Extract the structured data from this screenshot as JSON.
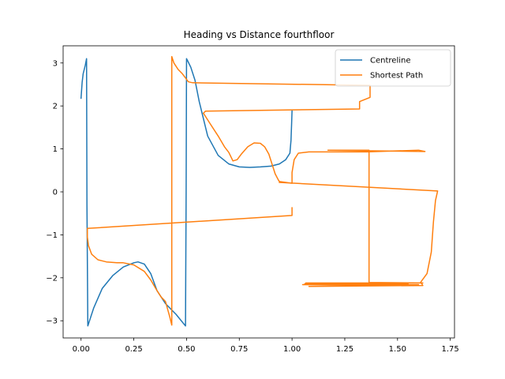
{
  "chart_data": {
    "type": "line",
    "title": "Heading vs Distance fourthfloor",
    "xlabel": "",
    "ylabel": "",
    "xlim": [
      -0.085,
      1.77
    ],
    "ylim": [
      -3.4,
      3.4
    ],
    "xticks": [
      0.0,
      0.25,
      0.5,
      0.75,
      1.0,
      1.25,
      1.5,
      1.75
    ],
    "xtick_labels": [
      "0.00",
      "0.25",
      "0.50",
      "0.75",
      "1.00",
      "1.25",
      "1.50",
      "1.75"
    ],
    "yticks": [
      -3,
      -2,
      -1,
      0,
      1,
      2,
      3
    ],
    "ytick_labels": [
      "−3",
      "−2",
      "−1",
      "0",
      "1",
      "2",
      "3"
    ],
    "grid": false,
    "legend_position": "top-right",
    "series": [
      {
        "name": "Centreline",
        "color": "#1f77b4",
        "x": [
          0.0,
          0.005,
          0.01,
          0.02,
          0.026,
          0.028,
          0.032,
          0.06,
          0.1,
          0.15,
          0.2,
          0.25,
          0.27,
          0.3,
          0.33,
          0.36,
          0.4,
          0.45,
          0.495,
          0.498,
          0.5,
          0.505,
          0.52,
          0.54,
          0.56,
          0.6,
          0.65,
          0.7,
          0.75,
          0.8,
          0.85,
          0.9,
          0.94,
          0.97,
          0.99,
          0.995,
          0.998,
          1.0
        ],
        "y": [
          2.18,
          2.55,
          2.75,
          2.95,
          3.1,
          -0.3,
          -3.12,
          -2.7,
          -2.25,
          -1.95,
          -1.75,
          -1.65,
          -1.63,
          -1.68,
          -1.9,
          -2.3,
          -2.6,
          -2.85,
          -3.12,
          0.0,
          3.1,
          3.05,
          2.9,
          2.6,
          2.1,
          1.3,
          0.85,
          0.65,
          0.58,
          0.57,
          0.58,
          0.6,
          0.65,
          0.75,
          0.9,
          1.2,
          1.6,
          1.88
        ]
      },
      {
        "name": "Shortest Path",
        "color": "#ff7f0e",
        "x": [
          1.0,
          1.0,
          0.03,
          0.03,
          0.035,
          0.05,
          0.08,
          0.12,
          0.17,
          0.2,
          0.25,
          0.3,
          0.33,
          0.36,
          0.38,
          0.4,
          0.42,
          0.43,
          0.43,
          0.44,
          0.46,
          0.48,
          0.5,
          0.505,
          0.51,
          0.52,
          0.53,
          1.37,
          1.37,
          1.33,
          1.32,
          1.32,
          0.59,
          0.58,
          0.61,
          0.65,
          0.68,
          0.7,
          0.71,
          0.72,
          0.74,
          0.76,
          0.79,
          0.82,
          0.85,
          0.87,
          0.89,
          0.905,
          0.92,
          0.935,
          0.94,
          1.0,
          1.0,
          1.01,
          1.03,
          1.08,
          1.35,
          1.6,
          1.63,
          1.17,
          1.365,
          1.365,
          1.365,
          1.62,
          1.065,
          1.55,
          1.06,
          1.6,
          1.05,
          1.53,
          1.08,
          1.62,
          1.61,
          1.64,
          1.66,
          1.67,
          1.68,
          1.69,
          0.94
        ],
        "y": [
          -0.37,
          -0.55,
          -0.85,
          -1.05,
          -1.25,
          -1.45,
          -1.58,
          -1.63,
          -1.65,
          -1.65,
          -1.7,
          -1.85,
          -2.05,
          -2.3,
          -2.45,
          -2.55,
          -2.9,
          -3.1,
          3.15,
          3.0,
          2.85,
          2.75,
          2.62,
          2.58,
          2.56,
          2.55,
          2.54,
          2.48,
          2.2,
          2.12,
          2.1,
          1.93,
          1.88,
          1.83,
          1.6,
          1.3,
          1.05,
          0.92,
          0.82,
          0.72,
          0.75,
          0.88,
          1.05,
          1.14,
          1.13,
          1.05,
          0.88,
          0.65,
          0.42,
          0.28,
          0.24,
          0.2,
          0.45,
          0.75,
          0.9,
          0.93,
          0.93,
          0.97,
          0.94,
          0.97,
          0.97,
          0.0,
          -2.11,
          -2.12,
          -2.12,
          -2.14,
          -2.14,
          -2.16,
          -2.16,
          -2.18,
          -2.2,
          -2.18,
          -2.1,
          -1.9,
          -1.4,
          -0.7,
          -0.2,
          0.02,
          0.22
        ]
      }
    ]
  }
}
